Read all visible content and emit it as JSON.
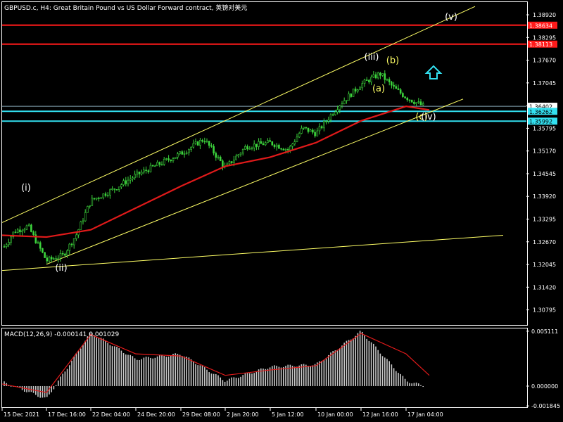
{
  "window": {
    "title": "GBPUSD.c, H4:  Great Britain Pound vs US Dollar Forward contract, 英镑对美元"
  },
  "colors": {
    "background": "#000000",
    "axis": "#ffffff",
    "candle": "#3cd43c",
    "ma": "#e01a1a",
    "channel": "#ffff66",
    "hline_red": "#ff1a1a",
    "hline_cyan": "#33e0f0",
    "wave_white": "#ffffff",
    "wave_yellow": "#ffff66",
    "arrow": "#33e0f0",
    "macd_hist": "#c8c8c8",
    "macd_signal": "#e01a1a"
  },
  "price_axis": {
    "ticks": [
      "1.38920",
      "1.38295",
      "1.37670",
      "1.37045",
      "1.36420",
      "1.35795",
      "1.35170",
      "1.34545",
      "1.33920",
      "1.33295",
      "1.32670",
      "1.32045",
      "1.31420",
      "1.30795"
    ],
    "range": [
      1.304,
      1.3925
    ]
  },
  "price_tags": [
    {
      "text": "1.38634",
      "value": 1.38634,
      "style": "red"
    },
    {
      "text": "1.38113",
      "value": 1.38113,
      "style": "red"
    },
    {
      "text": "1.36402",
      "value": 1.36402,
      "style": "white"
    },
    {
      "text": "1.36262",
      "value": 1.36262,
      "style": "cyan"
    },
    {
      "text": "1.35992",
      "value": 1.35992,
      "style": "cyan"
    }
  ],
  "time_axis": [
    "15 Dec 2021",
    "17 Dec 16:00",
    "22 Dec 04:00",
    "24 Dec 20:00",
    "29 Dec 08:00",
    "2 Jan 20:00",
    "5 Jan 12:00",
    "10 Jan 00:00",
    "12 Jan 16:00",
    "17 Jan 04:00"
  ],
  "macd": {
    "title": "MACD(12,26,9) -0.000141 0.001029",
    "ticks": [
      "0.005111",
      "0.000000",
      "-0.001845"
    ],
    "range": [
      -0.0019,
      0.0053
    ]
  },
  "wave_labels": [
    {
      "text": "(i)",
      "color": "white"
    },
    {
      "text": "(ii)",
      "color": "white"
    },
    {
      "text": "(iii)",
      "color": "white"
    },
    {
      "text": "(a)",
      "color": "yellow"
    },
    {
      "text": "(b)",
      "color": "yellow"
    },
    {
      "text": "(c)",
      "color": "yellow"
    },
    {
      "text": "(iv)",
      "color": "white"
    },
    {
      "text": "(v)",
      "color": "white"
    }
  ],
  "chart_data": {
    "type": "candlestick",
    "symbol": "GBPUSD.c",
    "timeframe": "H4",
    "ylim": [
      1.304,
      1.3925
    ],
    "close_path": {
      "x": [
        "15 Dec 2021",
        "16 Dec",
        "17 Dec 00:00",
        "17 Dec 16:00",
        "20 Dec",
        "21 Dec",
        "22 Dec 04:00",
        "23 Dec",
        "24 Dec 20:00",
        "27 Dec",
        "29 Dec 08:00",
        "30 Dec",
        "2 Jan 20:00",
        "4 Jan",
        "5 Jan 12:00",
        "6 Jan",
        "7 Jan",
        "10 Jan 00:00",
        "11 Jan",
        "12 Jan 16:00",
        "13 Jan",
        "14 Jan",
        "17 Jan 04:00",
        "18 Jan"
      ],
      "y": [
        1.3245,
        1.3295,
        1.331,
        1.3215,
        1.323,
        1.3285,
        1.338,
        1.341,
        1.345,
        1.348,
        1.351,
        1.355,
        1.347,
        1.353,
        1.354,
        1.352,
        1.358,
        1.3565,
        1.364,
        1.37,
        1.373,
        1.369,
        1.3665,
        1.3632
      ]
    },
    "moving_average": {
      "x": [
        "15 Dec 2021",
        "17 Dec 16:00",
        "22 Dec 04:00",
        "24 Dec 20:00",
        "29 Dec 08:00",
        "2 Jan 20:00",
        "5 Jan 12:00",
        "10 Jan 00:00",
        "12 Jan 16:00",
        "17 Jan 04:00",
        "18 Jan"
      ],
      "y": [
        1.3285,
        1.328,
        1.33,
        1.336,
        1.342,
        1.3475,
        1.35,
        1.354,
        1.36,
        1.364,
        1.363
      ]
    },
    "horizontal_lines": [
      1.38634,
      1.38113,
      1.36402,
      1.36262,
      1.35992
    ],
    "channel_lines": [
      {
        "from": [
          "15 Dec 2021",
          1.332
        ],
        "to": [
          "18 Jan",
          1.3915
        ]
      },
      {
        "from": [
          "17 Dec 16:00",
          1.3205
        ],
        "to": [
          "18 Jan",
          1.366
        ]
      },
      {
        "from": [
          "15 Dec 2021",
          1.3188
        ],
        "to": [
          "18 Jan",
          1.3285
        ]
      }
    ],
    "macd_histogram": {
      "x": [
        "15 Dec 2021",
        "17 Dec 16:00",
        "22 Dec 04:00",
        "24 Dec 20:00",
        "29 Dec 08:00",
        "2 Jan 20:00",
        "5 Jan 12:00",
        "10 Jan 00:00",
        "12 Jan 16:00",
        "17 Jan 04:00",
        "18 Jan"
      ],
      "y": [
        0.0004,
        -0.0012,
        0.005,
        0.0025,
        0.003,
        0.0005,
        0.0018,
        0.002,
        0.0051,
        0.0005,
        -0.00014
      ]
    },
    "macd_signal": {
      "x": [
        "15 Dec 2021",
        "17 Dec 16:00",
        "22 Dec 04:00",
        "24 Dec 20:00",
        "29 Dec 08:00",
        "2 Jan 20:00",
        "5 Jan 12:00",
        "10 Jan 00:00",
        "12 Jan 16:00",
        "17 Jan 04:00",
        "18 Jan"
      ],
      "y": [
        0.0002,
        -0.0006,
        0.0048,
        0.003,
        0.0028,
        0.001,
        0.0015,
        0.0019,
        0.0049,
        0.003,
        0.001
      ]
    }
  }
}
